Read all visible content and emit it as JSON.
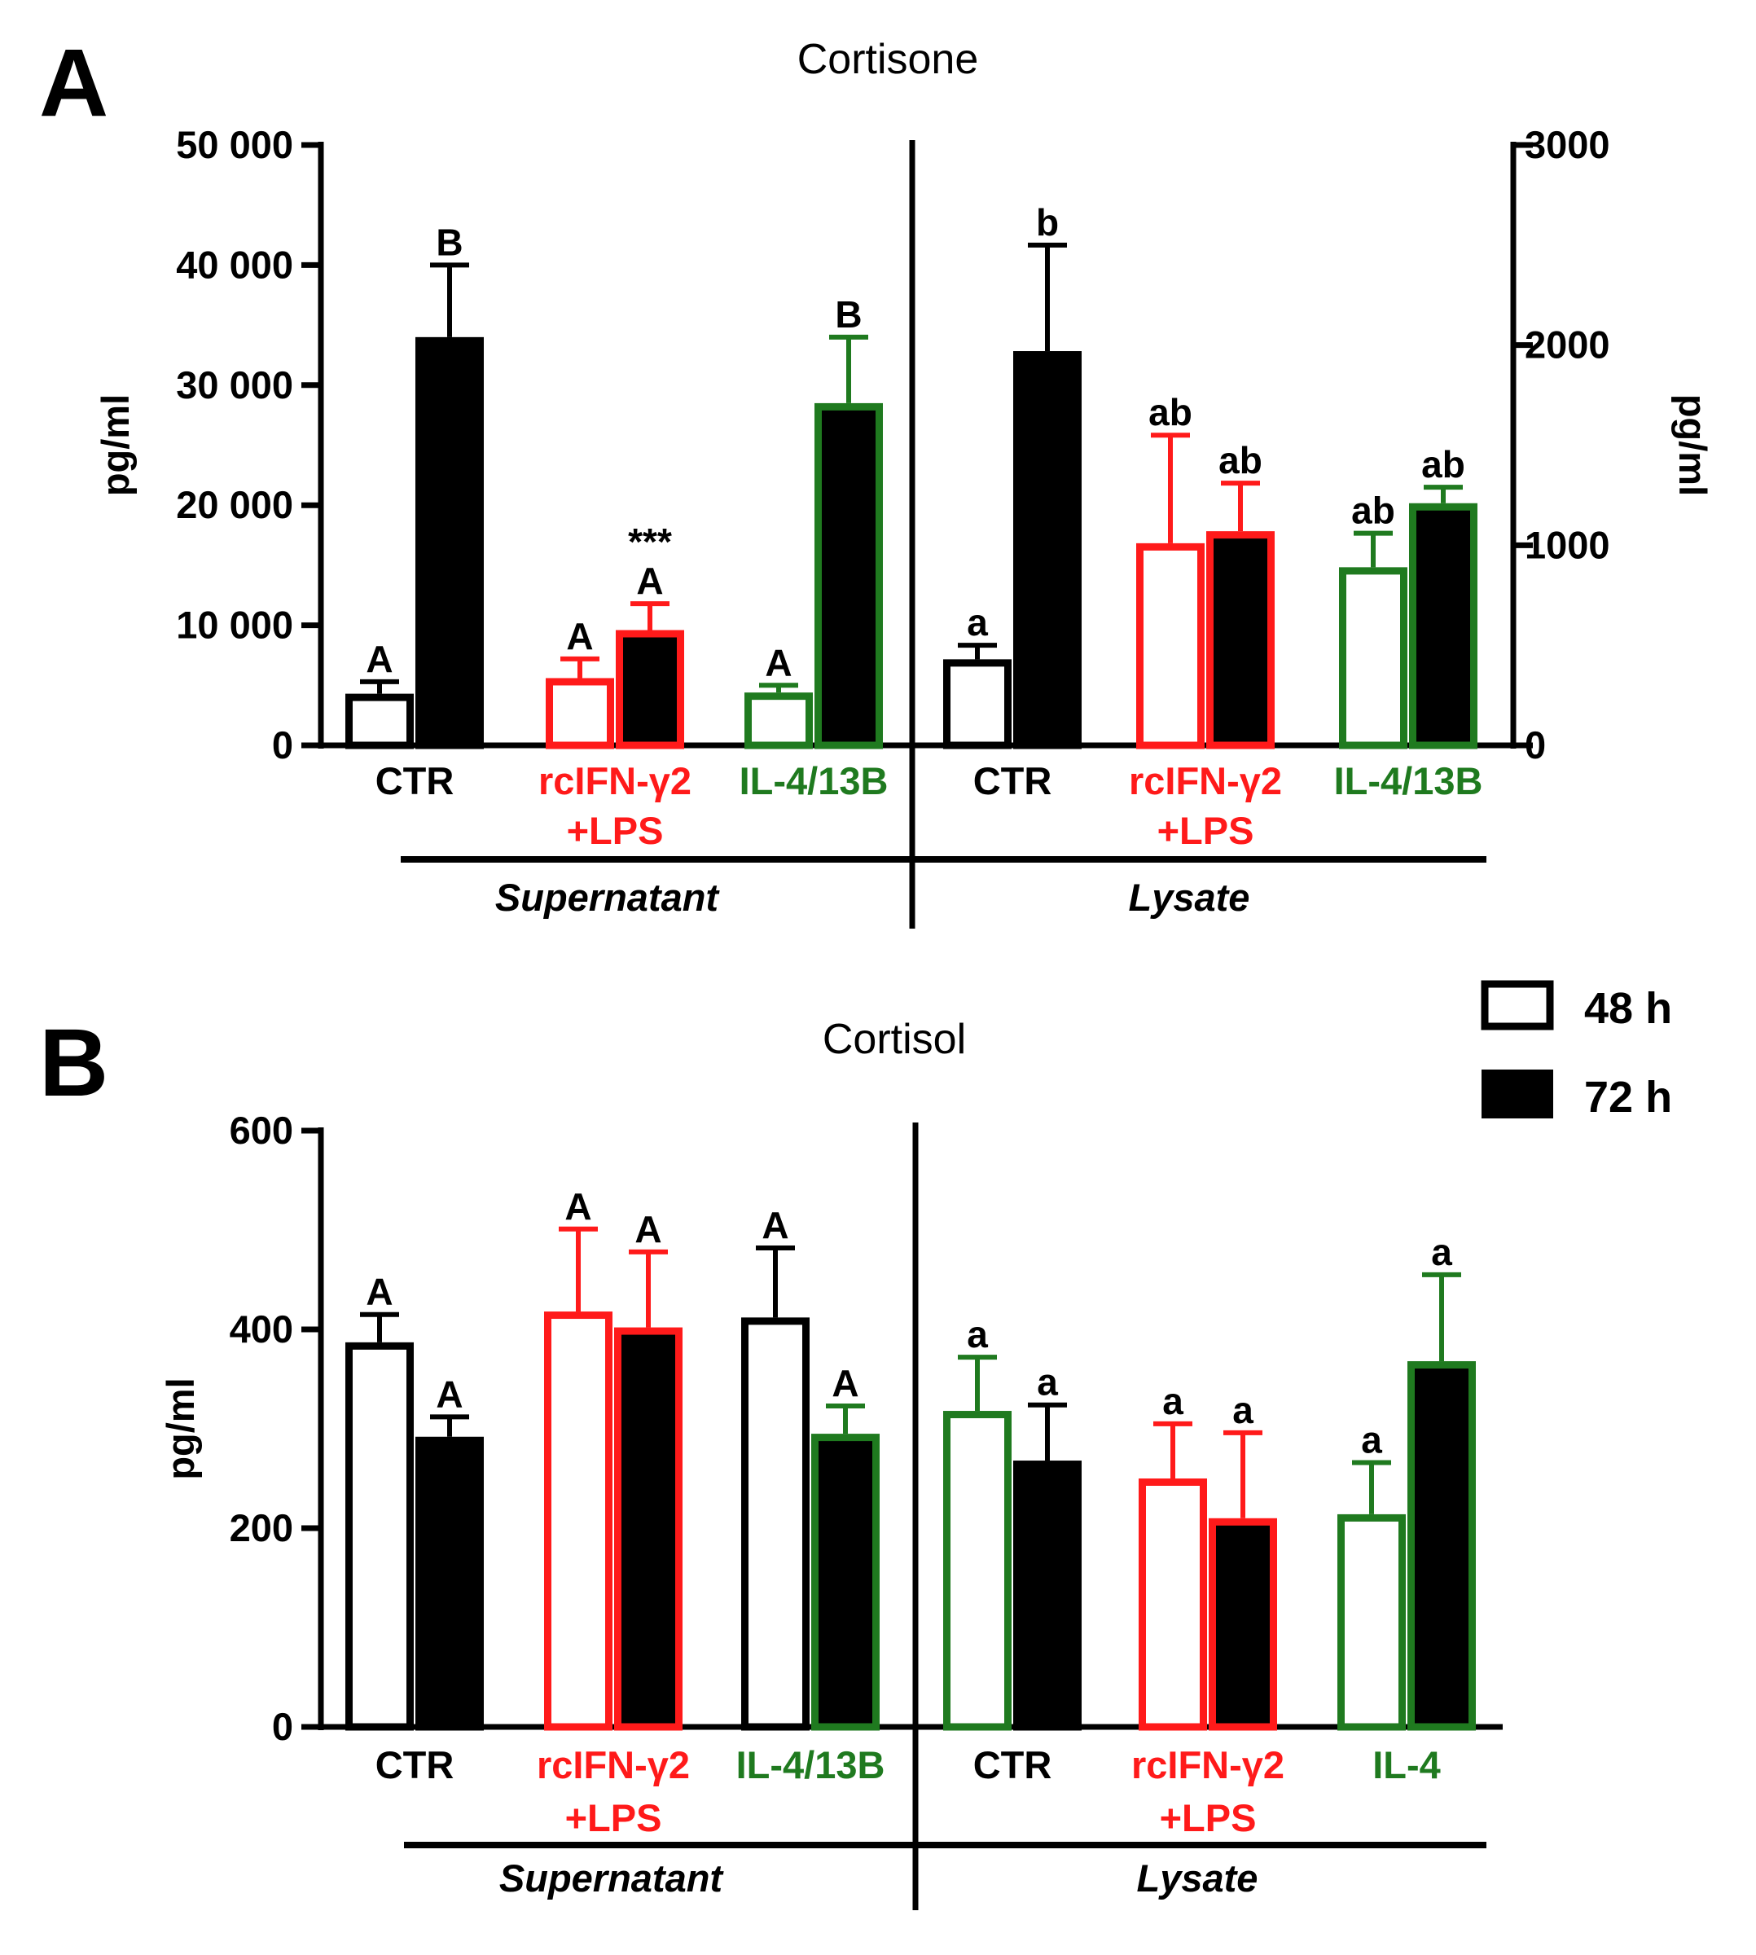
{
  "colors": {
    "black": "#000000",
    "red": "#ff1a1a",
    "green": "#1f7a1f",
    "white": "#ffffff"
  },
  "legend": [
    {
      "label": "48 h",
      "fill": "open"
    },
    {
      "label": "72 h",
      "fill": "solid"
    }
  ],
  "chart_data": [
    {
      "type": "bar",
      "panel": "A",
      "title": "Cortisone",
      "left_axis": {
        "label": "pg/ml",
        "ylim": [
          0,
          50000
        ],
        "ticks": [
          "0",
          "10 000",
          "20 000",
          "30 000",
          "40 000",
          "50 000"
        ]
      },
      "right_axis": {
        "label": "pg/ml",
        "ylim": [
          0,
          3000
        ],
        "ticks": [
          "0",
          "1000",
          "2000",
          "3000"
        ]
      },
      "groups": [
        {
          "name": "Supernatant",
          "axis": "left",
          "categories": [
            {
              "label": [
                "CTR"
              ],
              "color": "black",
              "bars": [
                {
                  "series": "48 h",
                  "value": 4300,
                  "err": 1000,
                  "sig": "A"
                },
                {
                  "series": "72 h",
                  "value": 34000,
                  "err": 6000,
                  "sig": "B"
                }
              ]
            },
            {
              "label": [
                "rcIFN-γ2",
                "+LPS"
              ],
              "color": "red",
              "bars": [
                {
                  "series": "48 h",
                  "value": 5600,
                  "err": 1600,
                  "sig": "A"
                },
                {
                  "series": "72 h",
                  "value": 9600,
                  "err": 2200,
                  "sig": "A",
                  "extra": "***"
                }
              ]
            },
            {
              "label": [
                "IL-4/13B"
              ],
              "color": "green",
              "bars": [
                {
                  "series": "48 h",
                  "value": 4400,
                  "err": 600,
                  "sig": "A"
                },
                {
                  "series": "72 h",
                  "value": 28500,
                  "err": 5500,
                  "sig": "B",
                  "inner": "black"
                }
              ]
            }
          ]
        },
        {
          "name": "Lysate",
          "axis": "right",
          "categories": [
            {
              "label": [
                "CTR"
              ],
              "color": "black",
              "bars": [
                {
                  "series": "48 h",
                  "value": 430,
                  "err": 70,
                  "sig": "a"
                },
                {
                  "series": "72 h",
                  "value": 1970,
                  "err": 530,
                  "sig": "b"
                }
              ]
            },
            {
              "label": [
                "rcIFN-γ2",
                "+LPS"
              ],
              "color": "red",
              "bars": [
                {
                  "series": "48 h",
                  "value": 1010,
                  "err": 540,
                  "sig": "ab"
                },
                {
                  "series": "72 h",
                  "value": 1070,
                  "err": 240,
                  "sig": "ab"
                }
              ]
            },
            {
              "label": [
                "IL-4/13B"
              ],
              "color": "green",
              "bars": [
                {
                  "series": "48 h",
                  "value": 890,
                  "err": 170,
                  "sig": "ab"
                },
                {
                  "series": "72 h",
                  "value": 1210,
                  "err": 80,
                  "sig": "ab"
                }
              ]
            }
          ]
        }
      ]
    },
    {
      "type": "bar",
      "panel": "B",
      "title": "Cortisol",
      "left_axis": {
        "label": "pg/ml",
        "ylim": [
          0,
          600
        ],
        "ticks": [
          "0",
          "200",
          "400",
          "600"
        ]
      },
      "groups": [
        {
          "name": "Supernatant",
          "axis": "left",
          "categories": [
            {
              "label": [
                "CTR"
              ],
              "color": "black",
              "bars": [
                {
                  "series": "48 h",
                  "value": 387,
                  "err": 28,
                  "sig": "A"
                },
                {
                  "series": "72 h",
                  "value": 292,
                  "err": 20,
                  "sig": "A"
                }
              ]
            },
            {
              "label": [
                "rcIFN-γ2",
                "+LPS"
              ],
              "color": "red",
              "bars": [
                {
                  "series": "48 h",
                  "value": 418,
                  "err": 83,
                  "sig": "A"
                },
                {
                  "series": "72 h",
                  "value": 402,
                  "err": 76,
                  "sig": "A"
                }
              ]
            },
            {
              "label": [
                "IL-4/13B"
              ],
              "color": "green",
              "bars": [
                {
                  "series": "48 h",
                  "value": 412,
                  "err": 70,
                  "sig": "A",
                  "outline": "black"
                },
                {
                  "series": "72 h",
                  "value": 295,
                  "err": 28,
                  "sig": "A"
                }
              ]
            }
          ]
        },
        {
          "name": "Lysate",
          "axis": "left",
          "categories": [
            {
              "label": [
                "CTR"
              ],
              "color": "black",
              "bars": [
                {
                  "series": "48 h",
                  "value": 318,
                  "err": 54,
                  "sig": "a",
                  "outline": "green"
                },
                {
                  "series": "72 h",
                  "value": 268,
                  "err": 56,
                  "sig": "a"
                }
              ]
            },
            {
              "label": [
                "rcIFN-γ2",
                "+LPS"
              ],
              "color": "red",
              "bars": [
                {
                  "series": "48 h",
                  "value": 250,
                  "err": 55,
                  "sig": "a"
                },
                {
                  "series": "72 h",
                  "value": 210,
                  "err": 86,
                  "sig": "a"
                }
              ]
            },
            {
              "label": [
                "IL-4"
              ],
              "color": "green",
              "bars": [
                {
                  "series": "48 h",
                  "value": 214,
                  "err": 52,
                  "sig": "a"
                },
                {
                  "series": "72 h",
                  "value": 368,
                  "err": 87,
                  "sig": "a"
                }
              ]
            }
          ]
        }
      ]
    }
  ]
}
